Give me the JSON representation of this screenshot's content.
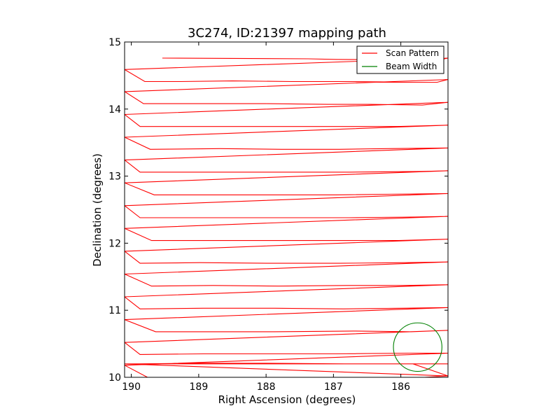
{
  "chart_data": {
    "type": "line",
    "title": "3C274, ID:21397 mapping path",
    "xlabel": "Right Ascension (degrees)",
    "ylabel": "Declination (degrees)",
    "xlim": [
      190.1,
      185.3
    ],
    "ylim": [
      10,
      15
    ],
    "xticks": [
      190,
      189,
      188,
      187,
      186
    ],
    "xtick_labels": [
      "190",
      "189",
      "188",
      "187",
      "186"
    ],
    "yticks": [
      10,
      11,
      12,
      13,
      14,
      15
    ],
    "ytick_labels": [
      "10",
      "11",
      "12",
      "13",
      "14",
      "15"
    ],
    "grid": false,
    "legend": "top-right",
    "series": [
      {
        "name": "Scan Pattern",
        "color": "#ff0000",
        "x": [
          189.54,
          187.38,
          186.95,
          185.46,
          185.3,
          190.1,
          189.8,
          189.28,
          188.5,
          187.6,
          186.7,
          185.79,
          185.46,
          185.3,
          190.1,
          189.82,
          188.95,
          188.0,
          187.09,
          186.46,
          185.68,
          185.3,
          190.1,
          189.87,
          188.75,
          187.76,
          186.86,
          186.05,
          185.3,
          190.1,
          189.72,
          188.68,
          187.77,
          186.91,
          186.2,
          185.3,
          190.1,
          189.87,
          188.89,
          187.86,
          186.76,
          185.7,
          185.3,
          190.1,
          189.66,
          188.83,
          187.97,
          186.96,
          186.2,
          185.3,
          190.1,
          189.87,
          188.94,
          188.01,
          186.77,
          185.8,
          185.3,
          190.1,
          189.7,
          188.87,
          187.88,
          186.85,
          186.03,
          185.3,
          190.1,
          189.87,
          188.98,
          187.99,
          186.92,
          185.92,
          185.3,
          190.1,
          189.7,
          188.79,
          187.81,
          186.81,
          185.98,
          185.3,
          190.1,
          189.87,
          188.93,
          187.87,
          186.85,
          185.98,
          185.3,
          190.1,
          189.64,
          188.88,
          187.88,
          186.7,
          185.85,
          185.3,
          190.1,
          189.87,
          188.93,
          187.92,
          186.96,
          185.89,
          185.3,
          190.1,
          189.76,
          188.81,
          187.64,
          186.61,
          185.65,
          185.3,
          190.1,
          189.87,
          188.99,
          188.01,
          186.84,
          185.82,
          185.3,
          190.1,
          189.75,
          188.77,
          187.67,
          186.76,
          185.62,
          185.3
        ],
        "y": [
          14.76,
          14.75,
          14.74,
          14.73,
          14.76,
          14.59,
          14.41,
          14.41,
          14.42,
          14.41,
          14.41,
          14.4,
          14.4,
          14.44,
          14.26,
          14.08,
          14.08,
          14.08,
          14.07,
          14.07,
          14.06,
          14.1,
          13.92,
          13.74,
          13.74,
          13.74,
          13.74,
          13.74,
          13.76,
          13.58,
          13.4,
          13.41,
          13.4,
          13.4,
          13.41,
          13.42,
          13.24,
          13.06,
          13.06,
          13.06,
          13.06,
          13.07,
          13.08,
          12.9,
          12.72,
          12.72,
          12.72,
          12.72,
          12.73,
          12.74,
          12.56,
          12.38,
          12.38,
          12.38,
          12.38,
          12.39,
          12.4,
          12.22,
          12.04,
          12.04,
          12.04,
          12.04,
          12.04,
          12.06,
          11.88,
          11.7,
          11.71,
          11.7,
          11.7,
          11.71,
          11.72,
          11.54,
          11.36,
          11.37,
          11.36,
          11.37,
          11.37,
          11.38,
          11.2,
          11.02,
          11.03,
          11.03,
          11.02,
          11.03,
          11.04,
          10.86,
          10.68,
          10.68,
          10.68,
          10.69,
          10.68,
          10.7,
          10.52,
          10.34,
          10.35,
          10.35,
          10.35,
          10.36,
          10.36,
          10.18,
          10.0,
          10.0,
          10.0,
          10.0,
          10.0,
          10.02,
          10.2,
          10.2,
          10.21,
          10.21,
          10.2,
          10.2,
          10.02,
          10.2,
          10.2,
          10.2,
          10.2,
          10.2,
          10.2,
          10.2
        ]
      },
      {
        "name": "Beam Width",
        "color": "#008000",
        "center_x": 185.75,
        "center_y": 10.45,
        "radius_deg": 0.36
      }
    ]
  }
}
